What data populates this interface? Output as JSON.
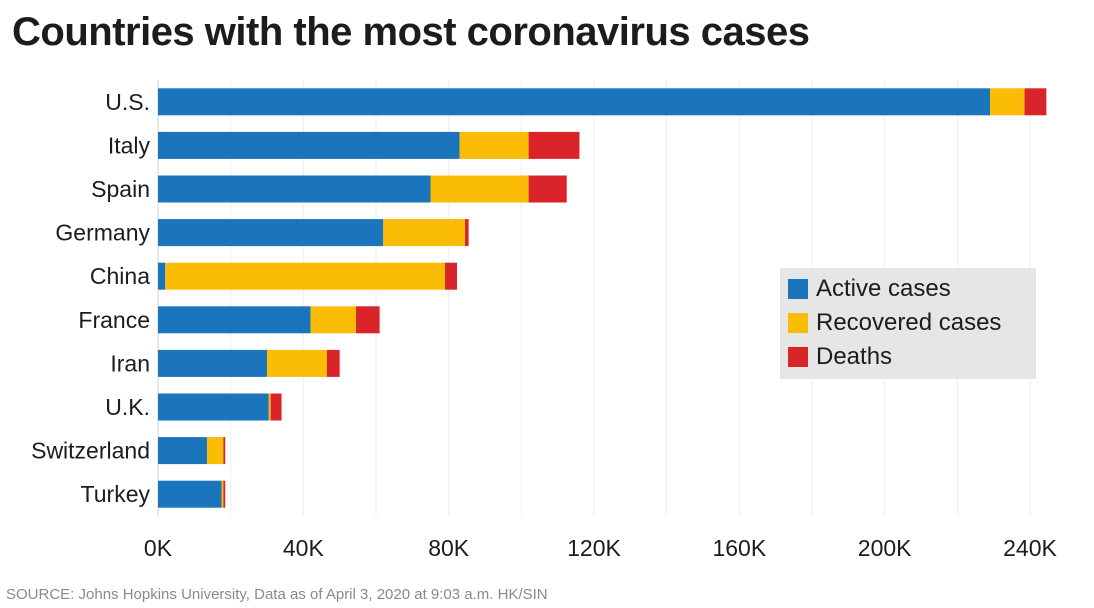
{
  "chart_data": {
    "type": "bar",
    "orientation": "horizontal",
    "stacked": true,
    "title": "Countries with the most coronavirus cases",
    "categories": [
      "U.S.",
      "Italy",
      "Spain",
      "Germany",
      "China",
      "France",
      "Iran",
      "U.K.",
      "Switzerland",
      "Turkey"
    ],
    "series": [
      {
        "name": "Active cases",
        "color": "#1a75bc",
        "values": [
          229000,
          83000,
          75000,
          62000,
          2000,
          42000,
          30000,
          30500,
          13500,
          17500
        ]
      },
      {
        "name": "Recovered cases",
        "color": "#fbbc05",
        "values": [
          9500,
          19000,
          27000,
          22500,
          77000,
          12500,
          16500,
          500,
          4500,
          500
        ]
      },
      {
        "name": "Deaths",
        "color": "#d9252a",
        "values": [
          6000,
          14000,
          10500,
          1000,
          3300,
          6500,
          3500,
          3000,
          500,
          500
        ]
      }
    ],
    "xticks": [
      "0K",
      "40K",
      "80K",
      "120K",
      "160K",
      "200K",
      "240K"
    ],
    "xtick_values": [
      0,
      40000,
      80000,
      120000,
      160000,
      200000,
      240000
    ],
    "xlim": [
      0,
      250000
    ],
    "grid": true,
    "legend_position": "right",
    "source": "SOURCE: Johns Hopkins University, Data as of April 3, 2020 at 9:03 a.m. HK/SIN"
  }
}
